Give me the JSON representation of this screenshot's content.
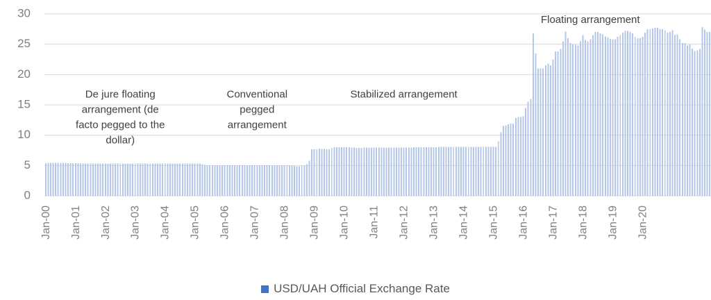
{
  "chart_data": {
    "type": "bar",
    "title": "",
    "xlabel": "",
    "ylabel": "",
    "ylim": [
      0,
      30
    ],
    "yticks": [
      0,
      5,
      10,
      15,
      20,
      25,
      30
    ],
    "grid": "horizontal",
    "legend_position": "bottom",
    "xtick_labels": [
      "Jan-00",
      "Jan-01",
      "Jan-02",
      "Jan-03",
      "Jan-04",
      "Jan-05",
      "Jan-06",
      "Jan-07",
      "Jan-08",
      "Jan-09",
      "Jan-10",
      "Jan-11",
      "Jan-12",
      "Jan-13",
      "Jan-14",
      "Jan-15",
      "Jan-16",
      "Jan-17",
      "Jan-18",
      "Jan-19",
      "Jan-20"
    ],
    "series": [
      {
        "name": "USD/UAH Official Exchange Rate",
        "color": "#b4c7e7",
        "legend_color": "#4472c4",
        "start": "Jan-00",
        "frequency": "monthly",
        "values": [
          5.4,
          5.45,
          5.45,
          5.44,
          5.44,
          5.43,
          5.43,
          5.43,
          5.42,
          5.41,
          5.41,
          5.4,
          5.37,
          5.36,
          5.35,
          5.35,
          5.34,
          5.34,
          5.33,
          5.33,
          5.32,
          5.32,
          5.31,
          5.3,
          5.3,
          5.31,
          5.32,
          5.33,
          5.33,
          5.33,
          5.33,
          5.33,
          5.33,
          5.33,
          5.33,
          5.33,
          5.33,
          5.33,
          5.33,
          5.33,
          5.33,
          5.33,
          5.33,
          5.33,
          5.33,
          5.33,
          5.33,
          5.33,
          5.33,
          5.33,
          5.33,
          5.33,
          5.32,
          5.32,
          5.32,
          5.32,
          5.32,
          5.32,
          5.32,
          5.31,
          5.31,
          5.31,
          5.3,
          5.2,
          5.1,
          5.05,
          5.05,
          5.05,
          5.05,
          5.05,
          5.05,
          5.05,
          5.05,
          5.05,
          5.05,
          5.05,
          5.05,
          5.05,
          5.05,
          5.05,
          5.05,
          5.05,
          5.05,
          5.05,
          5.05,
          5.05,
          5.05,
          5.05,
          5.05,
          5.05,
          5.05,
          5.05,
          5.05,
          5.05,
          5.05,
          5.05,
          5.05,
          5.05,
          5.05,
          5.05,
          4.9,
          4.85,
          4.85,
          4.9,
          5.0,
          5.2,
          5.8,
          7.7,
          7.7,
          7.7,
          7.8,
          7.75,
          7.75,
          7.7,
          7.7,
          7.9,
          8.0,
          8.0,
          8.0,
          8.0,
          8.0,
          8.0,
          8.0,
          7.95,
          7.95,
          7.9,
          7.9,
          7.9,
          7.95,
          7.95,
          7.95,
          7.95,
          7.95,
          7.95,
          7.95,
          7.95,
          7.95,
          7.95,
          7.95,
          7.95,
          7.95,
          7.98,
          7.98,
          7.98,
          7.98,
          7.98,
          7.98,
          7.98,
          7.99,
          7.99,
          7.99,
          7.99,
          7.99,
          7.99,
          8.0,
          8.0,
          8.0,
          8.0,
          8.05,
          8.05,
          8.05,
          8.05,
          8.1,
          8.1,
          8.1,
          8.1,
          8.1,
          8.1,
          8.1,
          8.1,
          8.1,
          8.1,
          8.1,
          8.1,
          8.1,
          8.1,
          8.1,
          8.1,
          8.1,
          8.1,
          8.1,
          8.1,
          9.0,
          10.5,
          11.5,
          11.6,
          11.8,
          11.9,
          11.9,
          12.8,
          13.0,
          13.0,
          13.1,
          14.5,
          15.5,
          16.0,
          26.8,
          23.5,
          21.0,
          21.0,
          21.0,
          21.5,
          21.8,
          21.5,
          22.5,
          23.8,
          23.8,
          24.2,
          25.5,
          27.1,
          26.0,
          25.2,
          25.0,
          24.9,
          24.8,
          25.5,
          26.5,
          25.7,
          25.5,
          25.8,
          26.5,
          27.0,
          27.0,
          26.8,
          26.6,
          26.3,
          26.1,
          25.9,
          25.8,
          25.8,
          26.2,
          26.5,
          26.9,
          27.2,
          27.2,
          27.0,
          26.8,
          26.2,
          26.0,
          26.0,
          26.2,
          26.9,
          27.5,
          27.5,
          27.6,
          27.7,
          27.7,
          27.5,
          27.5,
          27.3,
          26.9,
          27.0,
          27.3,
          26.5,
          26.6,
          25.8,
          25.2,
          25.2,
          24.8,
          25.0,
          24.3,
          23.9,
          24.0,
          24.2,
          27.8,
          27.4,
          27.0,
          27.0
        ]
      }
    ],
    "annotations": [
      {
        "lines": [
          "De jure floating",
          "arrangement (de",
          "facto pegged to the",
          "dollar)"
        ],
        "x": "Jul-02",
        "y": 16.2
      },
      {
        "lines": [
          "Conventional",
          "pegged",
          "arrangement"
        ],
        "x": "Feb-07",
        "y": 16.2
      },
      {
        "lines": [
          "Stabilized arrangement"
        ],
        "x": "Jan-12",
        "y": 16.2
      },
      {
        "lines": [
          "Floating arrangement"
        ],
        "x": "Apr-18",
        "y": 28.5
      }
    ]
  }
}
